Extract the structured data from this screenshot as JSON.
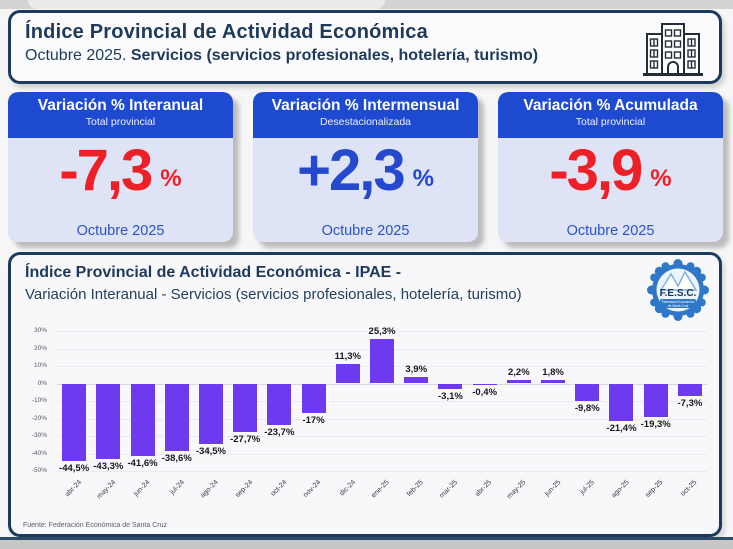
{
  "header": {
    "title": "Índice Provincial de Actividad Económica",
    "subtitle_prefix": "Octubre 2025. ",
    "subtitle_bold": "Servicios (servicios profesionales, hotelería, turismo)"
  },
  "cards": [
    {
      "title": "Variación % Interanual",
      "subtitle": "Total provincial",
      "value": "-7,3",
      "unit": "%",
      "period": "Octubre 2025",
      "value_color": "#ee2027"
    },
    {
      "title": "Variación % Intermensual",
      "subtitle": "Desestacionalizada",
      "value": "+2,3",
      "unit": "%",
      "period": "Octubre 2025",
      "value_color": "#2448ce"
    },
    {
      "title": "Variación % Acumulada",
      "subtitle": "Total provincial",
      "value": "-3,9",
      "unit": "%",
      "period": "Octubre 2025",
      "value_color": "#ee2027"
    }
  ],
  "chart_panel": {
    "title": "Índice Provincial de Actividad Económica - IPAE -",
    "subtitle": "Variación Interanual - Servicios (servicios profesionales, hotelería, turismo)",
    "logo_text": "F.E.S.C.",
    "logo_subtext": "Federación Económica de Santa Cruz",
    "source": "Fuente: Federación Económica de Santa Cruz"
  },
  "chart_data": {
    "type": "bar",
    "title": "Índice Provincial de Actividad Económica - IPAE - Variación Interanual - Servicios",
    "xlabel": "",
    "ylabel": "",
    "categories": [
      "abr-24",
      "may-24",
      "jun-24",
      "jul-24",
      "ago-24",
      "sep-24",
      "oct-24",
      "nov-24",
      "dic-24",
      "ene-25",
      "feb-25",
      "mar-25",
      "abr-25",
      "may-25",
      "jun-25",
      "jul-25",
      "ago-25",
      "sep-25",
      "oct-25"
    ],
    "values": [
      -44.5,
      -43.3,
      -41.6,
      -38.6,
      -34.5,
      -27.7,
      -23.7,
      -17,
      11.3,
      25.3,
      3.9,
      -3.1,
      -0.4,
      2.2,
      1.8,
      -9.8,
      -21.4,
      -19.3,
      -7.3
    ],
    "labels": [
      "-44,5%",
      "-43,3%",
      "-41,6%",
      "-38,6%",
      "-34,5%",
      "-27,7%",
      "-23,7%",
      "-17%",
      "11,3%",
      "25,3%",
      "3,9%",
      "-3,1%",
      "-0,4%",
      "2,2%",
      "1,8%",
      "-9,8%",
      "-21,4%",
      "-19,3%",
      "-7,3%"
    ],
    "ylim": [
      -50,
      30
    ],
    "ytick_step": 10,
    "grid": true,
    "legend": "none",
    "bar_color": "#6d3af0"
  },
  "colors": {
    "navy_border": "#1c3a5e",
    "card_header_blue": "#1e4ad1",
    "negative_red": "#ee2027",
    "positive_blue": "#2448ce",
    "bar_purple": "#6d3af0",
    "card_body": "#dee3f6"
  }
}
